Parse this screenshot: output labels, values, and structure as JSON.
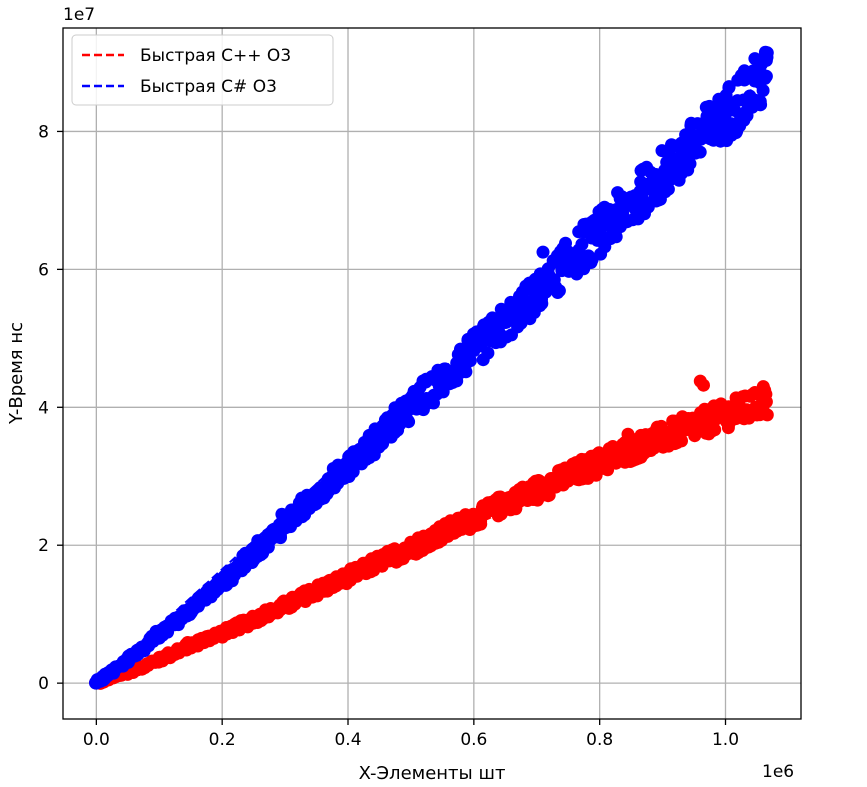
{
  "chart_data": {
    "type": "scatter",
    "title": "",
    "xlabel": "X-Элементы шт",
    "ylabel": "Y-Время нс",
    "x_offset_label": "1e6",
    "y_offset_label": "1e7",
    "xlim": [
      -53000,
      1120000
    ],
    "ylim": [
      -5200000,
      95000000
    ],
    "xticks": [
      0,
      200000,
      400000,
      600000,
      800000,
      1000000
    ],
    "xtick_labels": [
      "0.0",
      "0.2",
      "0.4",
      "0.6",
      "0.8",
      "1.0"
    ],
    "yticks": [
      0,
      20000000,
      40000000,
      60000000,
      80000000
    ],
    "ytick_labels": [
      "0",
      "2",
      "4",
      "6",
      "8"
    ],
    "grid": true,
    "legend_position": "top-left",
    "legend": [
      {
        "label": "Быстрая C++ O3",
        "color": "#ff0000",
        "style": "dashed"
      },
      {
        "label": "Быстрая C# O3",
        "color": "#0000ff",
        "style": "dashed"
      }
    ],
    "series": [
      {
        "name": "Быстрая C++ O3",
        "color": "#ff0000",
        "x": [
          0,
          50000,
          100000,
          150000,
          200000,
          250000,
          300000,
          350000,
          400000,
          450000,
          500000,
          550000,
          600000,
          650000,
          700000,
          750000,
          800000,
          850000,
          900000,
          950000,
          1000000,
          1065000
        ],
        "y": [
          0,
          1600000,
          3400000,
          5500000,
          7300000,
          9200000,
          11200000,
          13400000,
          15400000,
          17600000,
          19500000,
          21800000,
          23800000,
          26100000,
          28000000,
          30000000,
          32000000,
          33900000,
          35600000,
          37300000,
          38800000,
          40800000
        ],
        "outliers": {
          "x": [
            960000,
            965000,
            845000,
            745000,
            490000,
            1060000
          ],
          "y": [
            43800000,
            43200000,
            36100000,
            31200000,
            19600000,
            43000000
          ]
        }
      },
      {
        "name": "Быстрая C# O3",
        "color": "#0000ff",
        "x": [
          0,
          50000,
          100000,
          150000,
          200000,
          250000,
          300000,
          350000,
          400000,
          450000,
          500000,
          550000,
          600000,
          650000,
          700000,
          750000,
          800000,
          850000,
          900000,
          950000,
          1000000,
          1065000
        ],
        "y": [
          0,
          3400000,
          7000000,
          10800000,
          14600000,
          18800000,
          23000000,
          27400000,
          31500000,
          35700000,
          40000000,
          44000000,
          48200000,
          52300000,
          56500000,
          61000000,
          65200000,
          69500000,
          73800000,
          78000000,
          82500000,
          88000000
        ],
        "outliers": {
          "x": [
            710000,
            775000,
            1030000,
            1065000,
            295000,
            95000,
            505000
          ],
          "y": [
            62500000,
            66500000,
            88800000,
            90300000,
            24500000,
            7500000,
            42300000
          ]
        }
      }
    ]
  }
}
